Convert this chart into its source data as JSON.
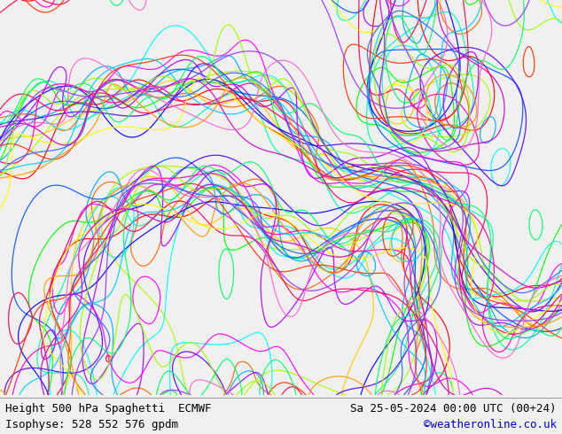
{
  "title_left": "Height 500 hPa Spaghetti  ECMWF",
  "title_right": "Sa 25-05-2024 00:00 UTC (00+24)",
  "subtitle_left": "Isophyse: 528 552 576 gpdm",
  "subtitle_right": "©weatheronline.co.uk",
  "subtitle_right_color": "#0000cc",
  "bg_color": "#f0f0f0",
  "map_land_color": "#ccff99",
  "map_sea_color": "#d8d8d8",
  "border_color": "#aaaaaa",
  "footer_text_color": "#000000",
  "figsize": [
    6.34,
    4.9
  ],
  "dpi": 100,
  "extent": [
    -80,
    55,
    25,
    85
  ],
  "contour_colors": [
    "#ff0000",
    "#ff6600",
    "#ffcc00",
    "#aaff00",
    "#00ff00",
    "#00ffaa",
    "#00ffff",
    "#00aaff",
    "#0055ff",
    "#0000ff",
    "#5500ff",
    "#aa00ff",
    "#ff00ff",
    "#ff00aa",
    "#ff0055",
    "#ff3300",
    "#ff9900",
    "#ffff00",
    "#99ff00",
    "#00ff66",
    "#00ccff",
    "#3366ff",
    "#9933ff",
    "#cc00cc",
    "#ff66cc"
  ],
  "n_members": 25,
  "contour_levels": [
    528,
    552,
    576
  ],
  "line_width": 0.9,
  "font_size_title": 9,
  "font_size_subtitle": 9,
  "font_family": "monospace"
}
